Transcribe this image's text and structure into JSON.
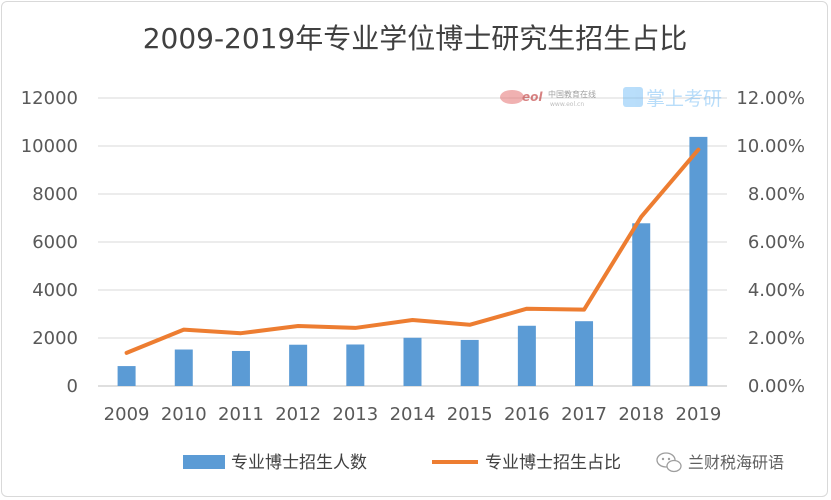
{
  "chart_data": {
    "type": "bar+line",
    "title": "2009-2019年专业学位博士研究生招生占比",
    "categories": [
      "2009",
      "2010",
      "2011",
      "2012",
      "2013",
      "2014",
      "2015",
      "2016",
      "2017",
      "2018",
      "2019"
    ],
    "series": [
      {
        "name": "专业博士招生人数",
        "type": "bar",
        "axis": "left",
        "values": [
          830,
          1520,
          1460,
          1720,
          1730,
          2010,
          1920,
          2510,
          2700,
          6780,
          10380
        ],
        "color": "#5b9bd5"
      },
      {
        "name": "专业博士招生占比",
        "type": "line",
        "axis": "right",
        "values": [
          0.0138,
          0.0235,
          0.022,
          0.025,
          0.0242,
          0.0275,
          0.0255,
          0.0322,
          0.0318,
          0.0705,
          0.0985
        ],
        "color": "#ed7d31"
      }
    ],
    "y_left": {
      "min": 0,
      "max": 12000,
      "ticks": [
        "0",
        "2000",
        "4000",
        "6000",
        "8000",
        "10000",
        "12000"
      ]
    },
    "y_right": {
      "min": 0,
      "max": 0.12,
      "ticks": [
        "0.00%",
        "2.00%",
        "4.00%",
        "6.00%",
        "8.00%",
        "10.00%",
        "12.00%"
      ]
    },
    "grid": true,
    "legend_position": "bottom"
  },
  "watermarks": {
    "eol_logo": "eol",
    "eol_text": "中国教育在线",
    "eol_sub": "www.eol.cn",
    "app_text": "掌上考研",
    "wechat_text": "兰财税海研语"
  }
}
